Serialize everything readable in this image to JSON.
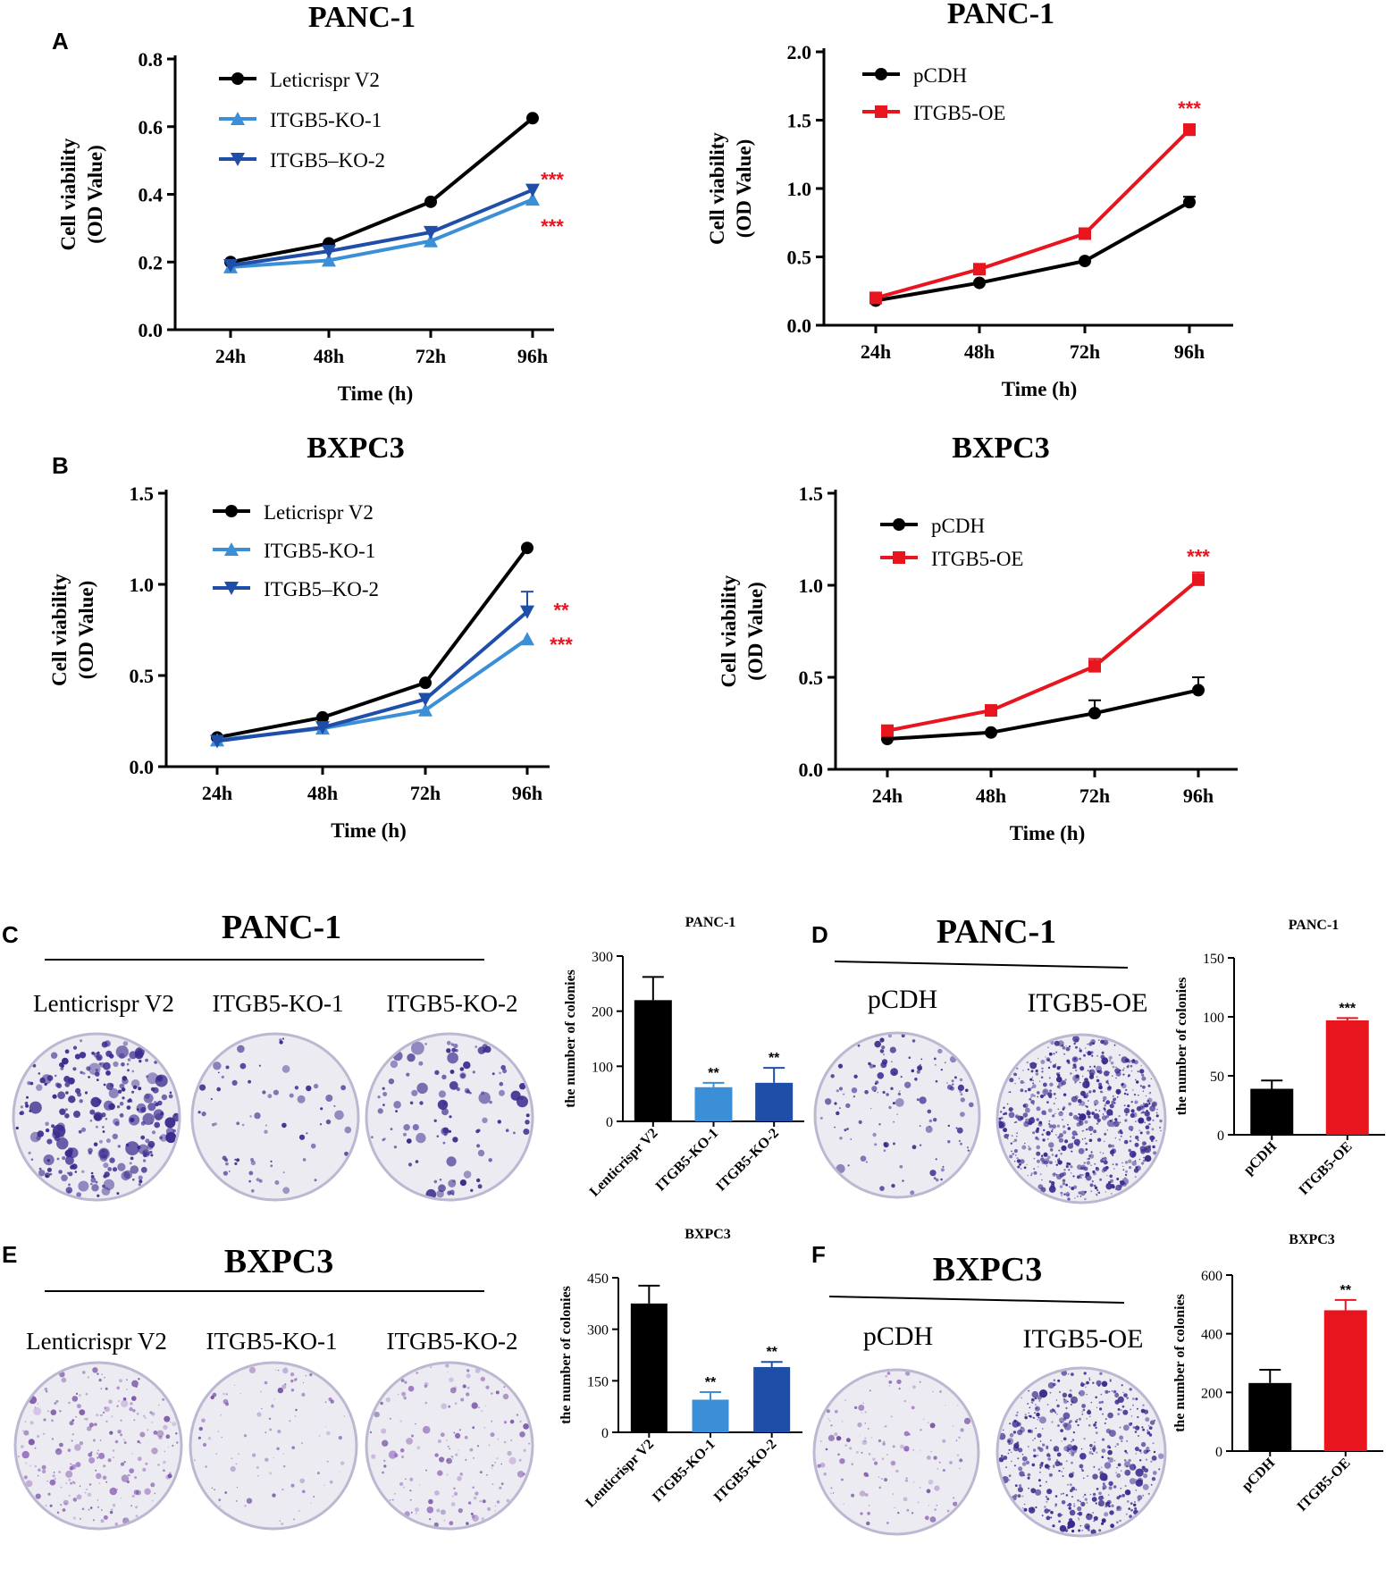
{
  "colors": {
    "black": "#000000",
    "ko1": "#3b8fd6",
    "ko2": "#1f4ea8",
    "oe": "#e8141e",
    "stain": "#3b2a8e",
    "dish_bg": "#ecebf2",
    "sig": "#e8141e"
  },
  "panel_labels": {
    "A": "A",
    "B": "B",
    "C": "C",
    "D": "D",
    "E": "E",
    "F": "F"
  },
  "colony_images": {
    "C": {
      "title": "PANC-1",
      "labels": [
        "Lenticrispr V2",
        "ITGB5-KO-1",
        "ITGB5-KO-2"
      ]
    },
    "D": {
      "title": "PANC-1",
      "labels": [
        "pCDH",
        "ITGB5-OE"
      ]
    },
    "E": {
      "title": "BXPC3",
      "labels": [
        "Lenticrispr V2",
        "ITGB5-KO-1",
        "ITGB5-KO-2"
      ]
    },
    "F": {
      "title": "BXPC3",
      "labels": [
        "pCDH",
        "ITGB5-OE"
      ]
    }
  },
  "chart_data": [
    {
      "id": "A_left",
      "type": "line",
      "title": "PANC-1",
      "xlabel": "Time (h)",
      "ylabel": [
        "Cell viability",
        "(OD Value)"
      ],
      "categories": [
        "24h",
        "48h",
        "72h",
        "96h"
      ],
      "ylim": [
        0,
        0.8
      ],
      "yticks": [
        0.0,
        0.2,
        0.4,
        0.6,
        0.8
      ],
      "ytick_labels": [
        "0.0",
        "0.2",
        "0.4",
        "0.6",
        "0.8"
      ],
      "series": [
        {
          "name": "Leticrispr V2",
          "values": [
            0.2,
            0.255,
            0.378,
            0.625
          ],
          "err": [
            0,
            0,
            0,
            0
          ],
          "color": "#000000",
          "marker": "circle"
        },
        {
          "name": "ITGB5-KO-1",
          "values": [
            0.185,
            0.205,
            0.262,
            0.385
          ],
          "err": [
            0,
            0,
            0,
            0
          ],
          "color": "#3b8fd6",
          "marker": "tri-up"
        },
        {
          "name": "ITGB5–KO-2",
          "values": [
            0.19,
            0.232,
            0.288,
            0.413
          ],
          "err": [
            0,
            0,
            0,
            0
          ],
          "color": "#1f4ea8",
          "marker": "tri-down"
        }
      ],
      "annotations": [
        {
          "text": "***",
          "series": 2
        },
        {
          "text": "***",
          "series": 1
        }
      ]
    },
    {
      "id": "A_right",
      "type": "line",
      "title": "PANC-1",
      "xlabel": "Time (h)",
      "ylabel": [
        "Cell viability",
        "(OD Value)"
      ],
      "categories": [
        "24h",
        "48h",
        "72h",
        "96h"
      ],
      "ylim": [
        0,
        2.0
      ],
      "yticks": [
        0.0,
        0.5,
        1.0,
        1.5,
        2.0
      ],
      "ytick_labels": [
        "0.0",
        "0.5",
        "1.0",
        "1.5",
        "2.0"
      ],
      "series": [
        {
          "name": "pCDH",
          "values": [
            0.18,
            0.31,
            0.47,
            0.9
          ],
          "err": [
            0,
            0,
            0,
            0.04
          ],
          "color": "#000000",
          "marker": "circle"
        },
        {
          "name": "ITGB5-OE",
          "values": [
            0.2,
            0.41,
            0.67,
            1.43
          ],
          "err": [
            0,
            0,
            0,
            0.04
          ],
          "color": "#e8141e",
          "marker": "square"
        }
      ],
      "annotations": [
        {
          "text": "***",
          "series": 1
        }
      ]
    },
    {
      "id": "B_left",
      "type": "line",
      "title": "BXPC3",
      "xlabel": "Time (h)",
      "ylabel": [
        "Cell viability",
        "(OD Value)"
      ],
      "categories": [
        "24h",
        "48h",
        "72h",
        "96h"
      ],
      "ylim": [
        0,
        1.5
      ],
      "yticks": [
        0.0,
        0.5,
        1.0,
        1.5
      ],
      "ytick_labels": [
        "0.0",
        "0.5",
        "1.0",
        "1.5"
      ],
      "series": [
        {
          "name": "Leticrispr V2",
          "values": [
            0.16,
            0.27,
            0.46,
            1.2
          ],
          "err": [
            0,
            0,
            0,
            0
          ],
          "color": "#000000",
          "marker": "circle"
        },
        {
          "name": "ITGB5-KO-1",
          "values": [
            0.145,
            0.21,
            0.31,
            0.7
          ],
          "err": [
            0,
            0,
            0,
            0
          ],
          "color": "#3b8fd6",
          "marker": "tri-up"
        },
        {
          "name": "ITGB5–KO-2",
          "values": [
            0.14,
            0.215,
            0.37,
            0.85
          ],
          "err": [
            0,
            0,
            0,
            0.11
          ],
          "color": "#1f4ea8",
          "marker": "tri-down"
        }
      ],
      "annotations": [
        {
          "text": "**",
          "series": 2
        },
        {
          "text": "***",
          "series": 1
        }
      ]
    },
    {
      "id": "B_right",
      "type": "line",
      "title": "BXPC3",
      "xlabel": "Time (h)",
      "ylabel": [
        "Cell viability",
        "(OD Value)"
      ],
      "categories": [
        "24h",
        "48h",
        "72h",
        "96h"
      ],
      "ylim": [
        0,
        1.5
      ],
      "yticks": [
        0.0,
        0.5,
        1.0,
        1.5
      ],
      "ytick_labels": [
        "0.0",
        "0.5",
        "1.0",
        "1.5"
      ],
      "series": [
        {
          "name": "pCDH",
          "values": [
            0.165,
            0.2,
            0.305,
            0.43
          ],
          "err": [
            0,
            0,
            0.07,
            0.07
          ],
          "color": "#000000",
          "marker": "circle"
        },
        {
          "name": "ITGB5-OE",
          "values": [
            0.21,
            0.32,
            0.56,
            1.03
          ],
          "err": [
            0,
            0,
            0.04,
            0.04
          ],
          "color": "#e8141e",
          "marker": "square"
        }
      ],
      "annotations": [
        {
          "text": "***",
          "series": 1
        }
      ]
    },
    {
      "id": "C_bar",
      "type": "bar",
      "title": "PANC-1",
      "ylabel": "the number of colonies",
      "categories": [
        "Lenticrispr V2",
        "ITGB5-KO-1",
        "ITGB5-KO-2"
      ],
      "values": [
        220,
        62,
        70
      ],
      "err": [
        42,
        8,
        27
      ],
      "colors": [
        "#000000",
        "#3b8fd6",
        "#1f4ea8"
      ],
      "sig": [
        "",
        "**",
        "**"
      ],
      "ylim": [
        0,
        300
      ],
      "yticks": [
        0,
        100,
        200,
        300
      ],
      "ytick_labels": [
        "0",
        "100",
        "200",
        "300"
      ]
    },
    {
      "id": "D_bar",
      "type": "bar",
      "title": "PANC-1",
      "ylabel": "the number of colonies",
      "categories": [
        "pCDH",
        "ITGB5-OE"
      ],
      "values": [
        39,
        97
      ],
      "err": [
        7,
        2
      ],
      "colors": [
        "#000000",
        "#e8141e"
      ],
      "sig": [
        "",
        "***"
      ],
      "ylim": [
        0,
        150
      ],
      "yticks": [
        0,
        50,
        100,
        150
      ],
      "ytick_labels": [
        "0",
        "50",
        "100",
        "150"
      ]
    },
    {
      "id": "E_bar",
      "type": "bar",
      "title": "BXPC3",
      "ylabel": "the number of colonies",
      "categories": [
        "Lenticrispr V2",
        "ITGB5-KO-1",
        "ITGB5-KO-2"
      ],
      "values": [
        375,
        95,
        190
      ],
      "err": [
        52,
        22,
        15
      ],
      "colors": [
        "#000000",
        "#3b8fd6",
        "#1f4ea8"
      ],
      "sig": [
        "",
        "**",
        "**"
      ],
      "ylim": [
        0,
        450
      ],
      "yticks": [
        0,
        150,
        300,
        450
      ],
      "ytick_labels": [
        "0",
        "150",
        "300",
        "450"
      ]
    },
    {
      "id": "F_bar",
      "type": "bar",
      "title": "BXPC3",
      "ylabel": "the number of colonies",
      "categories": [
        "pCDH",
        "ITGB5-OE"
      ],
      "values": [
        232,
        480
      ],
      "err": [
        45,
        35
      ],
      "colors": [
        "#000000",
        "#e8141e"
      ],
      "sig": [
        "",
        "**"
      ],
      "ylim": [
        0,
        600
      ],
      "yticks": [
        0,
        200,
        400,
        600
      ],
      "ytick_labels": [
        "0",
        "200",
        "400",
        "600"
      ]
    }
  ]
}
